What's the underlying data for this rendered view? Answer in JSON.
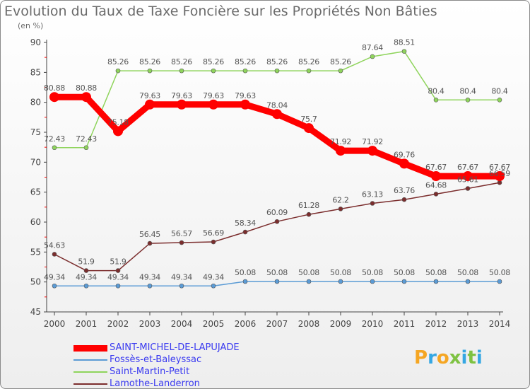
{
  "header": {
    "title": "Evolution du Taux de Taxe Foncière sur les Propriétés Non Bâties",
    "unit": "(en %)"
  },
  "logo": {
    "text": "Proxiti"
  },
  "chart_data": {
    "type": "line",
    "title": "Evolution du Taux de Taxe Foncière sur les Propriétés Non Bâties",
    "ylabel": "(en %)",
    "xlabel": "",
    "x": [
      "2000",
      "2001",
      "2002",
      "2003",
      "2004",
      "2005",
      "2006",
      "2007",
      "2008",
      "2009",
      "2010",
      "2011",
      "2012",
      "2013",
      "2014"
    ],
    "ylim": [
      45,
      90
    ],
    "yticks": [
      "45",
      "50",
      "55",
      "60",
      "65",
      "70",
      "75",
      "80",
      "85",
      "90"
    ],
    "grid": false,
    "legend_position": "bottom-left",
    "series": [
      {
        "name": "SAINT-MICHEL-DE-LAPUJADE",
        "color": "#ff0000",
        "values": [
          80.88,
          80.88,
          75.18,
          79.63,
          79.63,
          79.63,
          79.63,
          78.04,
          75.7,
          71.92,
          71.92,
          69.76,
          67.67,
          67.67,
          67.67
        ],
        "labels": [
          "80.88",
          "80.88",
          "75.18",
          "79.63",
          "79.63",
          "79.63",
          "79.63",
          "78.04",
          "75.7",
          "71.92",
          "71.92",
          "69.76",
          "67.67",
          "67.67",
          "67.67"
        ]
      },
      {
        "name": "Fossès-et-Baleyssac",
        "color": "#5b9bd5",
        "values": [
          49.34,
          49.34,
          49.34,
          49.34,
          49.34,
          49.34,
          50.08,
          50.08,
          50.08,
          50.08,
          50.08,
          50.08,
          50.08,
          50.08,
          50.08
        ],
        "labels": [
          "49.34",
          "49.34",
          "49.34",
          "49.34",
          "49.34",
          "49.34",
          "50.08",
          "50.08",
          "50.08",
          "50.08",
          "50.08",
          "50.08",
          "50.08",
          "50.08",
          "50.08"
        ]
      },
      {
        "name": "Saint-Martin-Petit",
        "color": "#8fd45c",
        "values": [
          72.43,
          72.43,
          85.26,
          85.26,
          85.26,
          85.26,
          85.26,
          85.26,
          85.26,
          85.26,
          87.64,
          88.51,
          80.4,
          80.4,
          80.4
        ],
        "labels": [
          "72.43",
          "72.43",
          "85.26",
          "85.26",
          "85.26",
          "85.26",
          "85.26",
          "85.26",
          "85.26",
          "85.26",
          "87.64",
          "88.51",
          "80.4",
          "80.4",
          "80.4"
        ]
      },
      {
        "name": "Lamothe-Landerron",
        "color": "#7b2d2d",
        "values": [
          54.63,
          51.9,
          51.9,
          56.45,
          56.57,
          56.69,
          58.34,
          60.09,
          61.28,
          62.2,
          63.13,
          63.76,
          64.68,
          65.61,
          66.59
        ],
        "labels": [
          "54.63",
          "51.9",
          "51.9",
          "56.45",
          "56.57",
          "56.69",
          "58.34",
          "60.09",
          "61.28",
          "62.2",
          "63.13",
          "63.76",
          "64.68",
          "65.61",
          "66.59"
        ]
      }
    ]
  }
}
